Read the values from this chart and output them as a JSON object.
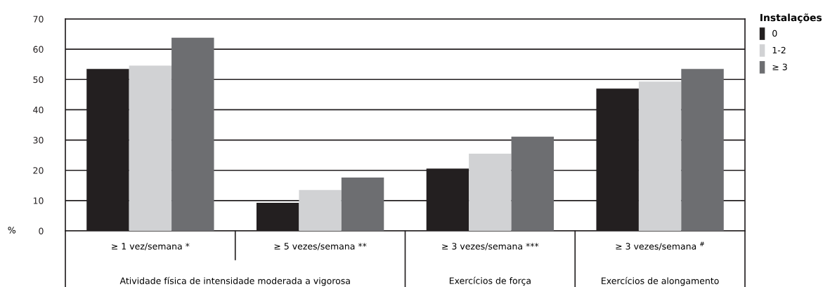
{
  "chart_data": {
    "type": "bar",
    "ylabel": "%",
    "legend_title": "Instalações",
    "categories": [
      "≥ 1 vez/semana *",
      "≥ 5 vezes/semana **",
      "≥ 3 vezes/semana ***",
      "≥ 3 vezes/semana $^{#}$"
    ],
    "series": [
      {
        "name": "0",
        "color": "#231f20",
        "values": [
          53.5,
          9.3,
          20.6,
          47.0
        ]
      },
      {
        "name": "1-2",
        "color": "#d1d2d4",
        "values": [
          54.6,
          13.5,
          25.5,
          49.3
        ]
      },
      {
        "name": "≥ 3",
        "color": "#6d6e71",
        "values": [
          63.8,
          17.6,
          31.1,
          53.5
        ]
      }
    ],
    "ylim": [
      0,
      70
    ],
    "yticks": [
      0,
      10,
      20,
      30,
      40,
      50,
      60,
      70
    ],
    "grid": "y",
    "legend": "top right",
    "annotations": [
      "Atividade física de intensidade moderada a vigorosa",
      "Exercícios de força",
      "Exercícios de alongamento"
    ]
  }
}
